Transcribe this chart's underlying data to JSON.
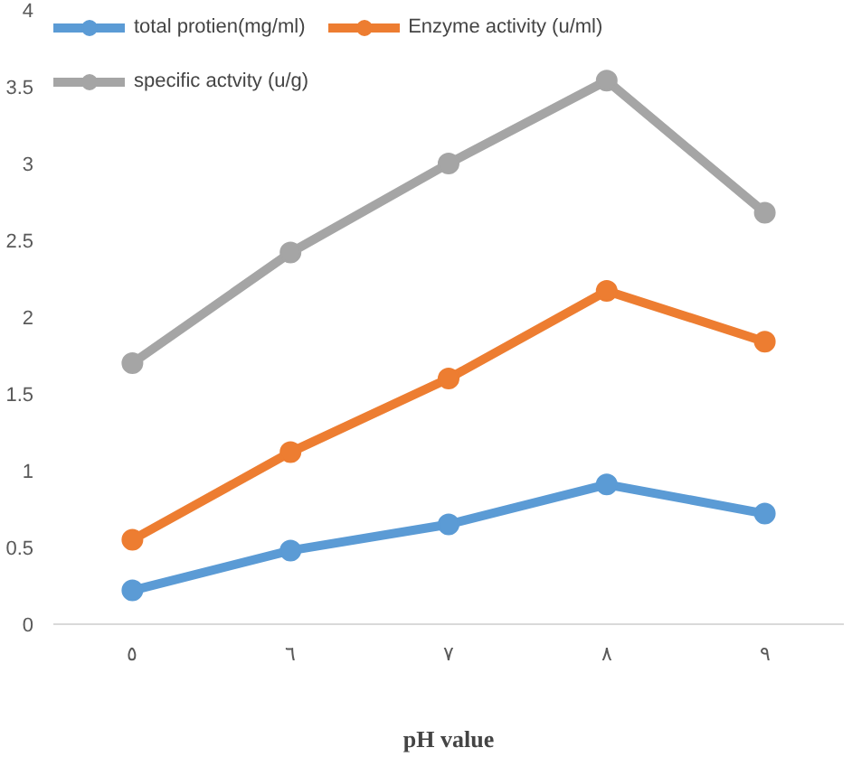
{
  "chart_data": {
    "type": "line",
    "xlabel": "pH value",
    "categories": [
      "٥",
      "٦",
      "٧",
      "٨",
      "٩"
    ],
    "series": [
      {
        "name": "total protien(mg/ml)",
        "color": "#5b9bd5",
        "values": [
          0.22,
          0.48,
          0.65,
          0.91,
          0.72
        ]
      },
      {
        "name": "Enzyme activity (u/ml)",
        "color": "#ed7d31",
        "values": [
          0.55,
          1.12,
          1.6,
          2.17,
          1.84
        ]
      },
      {
        "name": "specific actvity (u/g)",
        "color": "#a5a5a5",
        "values": [
          1.7,
          2.42,
          3.0,
          3.54,
          2.68
        ]
      }
    ],
    "ylim": [
      0,
      4
    ],
    "yticks": [
      0,
      0.5,
      1,
      1.5,
      2,
      2.5,
      3,
      3.5,
      4
    ],
    "grid": false,
    "legend": "top left",
    "marker": "circle",
    "line_style": "solid"
  }
}
